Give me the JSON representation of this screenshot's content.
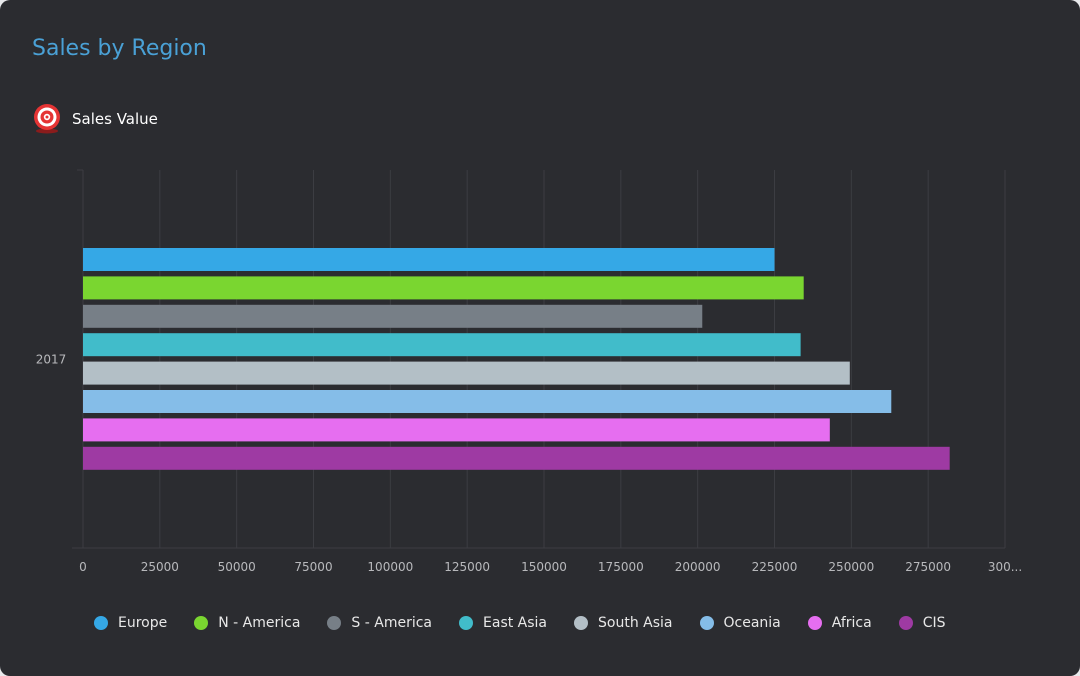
{
  "header": {
    "title": "Sales by Region",
    "kpi_label": "Sales Value",
    "kpi_icon": "target-icon"
  },
  "colors": {
    "background": "#2b2c30",
    "title": "#4aa1d6",
    "gridline": "#3c3d42",
    "tick_label": "#b8b9bc"
  },
  "chart_data": {
    "type": "bar",
    "orientation": "horizontal",
    "categories": [
      "2017"
    ],
    "xlim": [
      0,
      300000
    ],
    "x_ticks": [
      "0",
      "25000",
      "50000",
      "75000",
      "100000",
      "125000",
      "150000",
      "175000",
      "200000",
      "225000",
      "250000",
      "275000",
      "300..."
    ],
    "grid": true,
    "legend": "bottom",
    "series": [
      {
        "name": "Europe",
        "color": "#35a8e6",
        "values": [
          225000
        ]
      },
      {
        "name": "N - America",
        "color": "#7ad630",
        "values": [
          234500
        ]
      },
      {
        "name": "S - America",
        "color": "#777f87",
        "values": [
          201500
        ]
      },
      {
        "name": "East Asia",
        "color": "#41bcca",
        "values": [
          233500
        ]
      },
      {
        "name": "South Asia",
        "color": "#b3bfc6",
        "values": [
          249500
        ]
      },
      {
        "name": "Oceania",
        "color": "#85bde8",
        "values": [
          263000
        ]
      },
      {
        "name": "Africa",
        "color": "#e66ef0",
        "values": [
          243000
        ]
      },
      {
        "name": "CIS",
        "color": "#9e3aa3",
        "values": [
          282000
        ]
      }
    ]
  }
}
